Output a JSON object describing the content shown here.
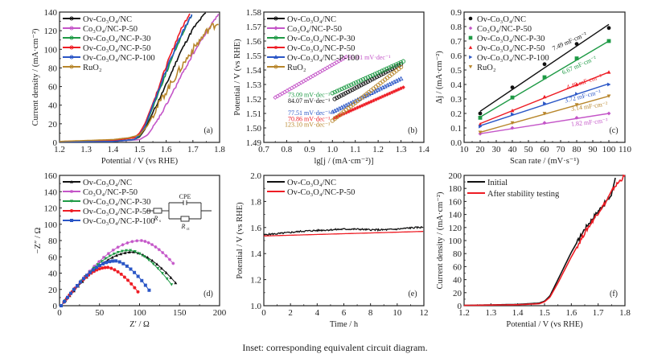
{
  "caption": "Inset: corresponding equivalent circuit diagram.",
  "colors": {
    "black": "#111111",
    "magenta": "#c455c8",
    "green": "#1e9a45",
    "red": "#ee1c24",
    "blue": "#2a56c6",
    "gold": "#b8862b"
  },
  "chart_data": [
    {
      "id": "a",
      "type": "line",
      "panel_label": "(a)",
      "xlabel": "Potential / V (vs RHE)",
      "ylabel": "Current density / (mA·cm⁻²)",
      "xlim": [
        1.2,
        1.8
      ],
      "ylim": [
        0,
        140
      ],
      "xticks": [
        1.2,
        1.3,
        1.4,
        1.5,
        1.6,
        1.7,
        1.8
      ],
      "yticks": [
        0,
        20,
        40,
        60,
        80,
        100,
        120,
        140
      ],
      "xtick_labels": [
        "1.2",
        "1.3",
        "1.4",
        "1.5",
        "1.6",
        "1.7",
        "1.8"
      ],
      "ytick_labels": [
        "0",
        "20",
        "40",
        "60",
        "80",
        "100",
        "120",
        "140"
      ],
      "legend_position": "top-left",
      "series": [
        {
          "name": "Ov-Co₃O₄/NC",
          "color": "#111111",
          "marker": "circle",
          "x": [
            1.2,
            1.4,
            1.48,
            1.5,
            1.52,
            1.55,
            1.6,
            1.65,
            1.7,
            1.75
          ],
          "y": [
            0.5,
            1,
            3,
            6,
            14,
            32,
            62,
            95,
            122,
            140
          ]
        },
        {
          "name": "Co₃O₄/NC-P-50",
          "color": "#c455c8",
          "marker": "diamond",
          "x": [
            1.2,
            1.4,
            1.5,
            1.53,
            1.56,
            1.6,
            1.65,
            1.7,
            1.75,
            1.8
          ],
          "y": [
            0.5,
            1,
            3,
            8,
            20,
            40,
            68,
            95,
            118,
            140
          ]
        },
        {
          "name": "Ov-Co₃O₄/NC-P-30",
          "color": "#1e9a45",
          "marker": "square",
          "x": [
            1.2,
            1.4,
            1.48,
            1.5,
            1.52,
            1.55,
            1.6,
            1.65,
            1.7
          ],
          "y": [
            0.5,
            1,
            3,
            7,
            16,
            38,
            75,
            110,
            140
          ]
        },
        {
          "name": "Ov-Co₃O₄/NC-P-50",
          "color": "#ee1c24",
          "marker": "star",
          "x": [
            1.2,
            1.4,
            1.48,
            1.5,
            1.52,
            1.55,
            1.6,
            1.65,
            1.69
          ],
          "y": [
            1,
            2,
            5,
            10,
            20,
            42,
            82,
            118,
            140
          ]
        },
        {
          "name": "Ov-Co₃O₄/NC-P-100",
          "color": "#2a56c6",
          "marker": "triangle",
          "x": [
            1.2,
            1.4,
            1.48,
            1.5,
            1.52,
            1.55,
            1.6,
            1.65,
            1.7
          ],
          "y": [
            0.5,
            1,
            3,
            8,
            17,
            40,
            78,
            112,
            140
          ]
        },
        {
          "name": "RuO₂",
          "color": "#b8862b",
          "marker": "circle",
          "x": [
            1.2,
            1.4,
            1.46,
            1.5,
            1.53,
            1.56,
            1.6,
            1.65,
            1.7,
            1.76,
            1.8
          ],
          "y": [
            1,
            3,
            5,
            8,
            18,
            35,
            55,
            78,
            100,
            122,
            130
          ]
        }
      ]
    },
    {
      "id": "b",
      "type": "scatter",
      "panel_label": "(b)",
      "xlabel": "lg[j / (mA·cm⁻²)]",
      "ylabel": "Potential / V (vs RHE)",
      "xlim": [
        0.7,
        1.4
      ],
      "ylim": [
        1.49,
        1.58
      ],
      "xticks": [
        0.7,
        0.8,
        0.9,
        1.0,
        1.1,
        1.2,
        1.3,
        1.4
      ],
      "yticks": [
        1.49,
        1.5,
        1.51,
        1.52,
        1.53,
        1.54,
        1.55,
        1.56,
        1.57,
        1.58
      ],
      "xtick_labels": [
        "0.7",
        "0.8",
        "0.9",
        "1.0",
        "1.1",
        "1.2",
        "1.3",
        "1.4"
      ],
      "ytick_labels": [
        "1.49",
        "1.50",
        "1.51",
        "1.52",
        "1.53",
        "1.54",
        "1.55",
        "1.56",
        "1.57",
        "1.58"
      ],
      "legend_position": "top-left",
      "series": [
        {
          "name": "Ov-Co₃O₄/NC",
          "color": "#111111",
          "marker": "circle",
          "x_range": [
            1.01,
            1.3
          ],
          "y_range": [
            1.52,
            1.544
          ],
          "slope_label": "84.07 mV·dec⁻¹"
        },
        {
          "name": "Co₃O₄/NC-P-50",
          "color": "#c455c8",
          "marker": "diamond",
          "x_range": [
            0.75,
            1.06
          ],
          "y_range": [
            1.521,
            1.549
          ],
          "slope_label": "93.01 mV·dec⁻¹"
        },
        {
          "name": "Ov-Co₃O₄/NC-P-30",
          "color": "#1e9a45",
          "marker": "circle",
          "x_range": [
            1.0,
            1.31
          ],
          "y_range": [
            1.524,
            1.546
          ],
          "slope_label": "73.09 mV·dec⁻¹"
        },
        {
          "name": "Ov-Co₃O₄/NC-P-50",
          "color": "#ee1c24",
          "marker": "star",
          "x_range": [
            1.01,
            1.31
          ],
          "y_range": [
            1.507,
            1.528
          ],
          "slope_label": "70.86 mV·dec⁻¹"
        },
        {
          "name": "Ov-Co₃O₄/NC-P-100",
          "color": "#2a56c6",
          "marker": "triangle",
          "x_range": [
            1.0,
            1.3
          ],
          "y_range": [
            1.511,
            1.534
          ],
          "slope_label": "77.51 mV·dec⁻¹"
        },
        {
          "name": "RuO₂",
          "color": "#b8862b",
          "marker": "circle",
          "x_range": [
            1.0,
            1.3
          ],
          "y_range": [
            1.505,
            1.542
          ],
          "slope_label": "123.10 mV·dec⁻¹"
        }
      ]
    },
    {
      "id": "c",
      "type": "scatter",
      "panel_label": "(c)",
      "xlabel": "Scan rate / (mV·s⁻¹)",
      "ylabel": "Δj / (mA·cm⁻²)",
      "xlim": [
        10,
        110
      ],
      "ylim": [
        0,
        0.9
      ],
      "xticks": [
        10,
        20,
        30,
        40,
        50,
        60,
        70,
        80,
        90,
        100,
        110
      ],
      "yticks": [
        0,
        0.1,
        0.2,
        0.3,
        0.4,
        0.5,
        0.6,
        0.7,
        0.8,
        0.9
      ],
      "xtick_labels": [
        "10",
        "20",
        "30",
        "40",
        "50",
        "60",
        "70",
        "80",
        "90",
        "100",
        "110"
      ],
      "ytick_labels": [
        "0.0",
        "0.1",
        "0.2",
        "0.3",
        "0.4",
        "0.5",
        "0.6",
        "0.7",
        "0.8",
        "0.9"
      ],
      "legend_position": "top-left",
      "x": [
        20,
        40,
        60,
        80,
        100
      ],
      "series": [
        {
          "name": "Ov-Co₃O₄/NC",
          "color": "#111111",
          "marker": "circle",
          "values": [
            0.2,
            0.38,
            0.54,
            0.68,
            0.79
          ],
          "fit": [
            0.215,
            0.815
          ],
          "slope_label": "7.49 mF·cm⁻²"
        },
        {
          "name": "Co₃O₄/NC-P-50",
          "color": "#c455c8",
          "marker": "diamond",
          "values": [
            0.06,
            0.1,
            0.135,
            0.17,
            0.2
          ],
          "fit": [
            0.06,
            0.2
          ],
          "slope_label": "1.82 mF·cm⁻²"
        },
        {
          "name": "Ov-Co₃O₄/NC-P-30",
          "color": "#1e9a45",
          "marker": "square",
          "values": [
            0.17,
            0.31,
            0.45,
            0.58,
            0.7
          ],
          "fit": [
            0.175,
            0.7
          ],
          "slope_label": "6.67 mF·cm⁻²"
        },
        {
          "name": "Ov-Co₃O₄/NC-P-50",
          "color": "#ee1c24",
          "marker": "triangle-up",
          "values": [
            0.125,
            0.22,
            0.315,
            0.4,
            0.485
          ],
          "fit": [
            0.13,
            0.485
          ],
          "slope_label": "4.49 mF·cm⁻²"
        },
        {
          "name": "Ov-Co₃O₄/NC-P-100",
          "color": "#2a56c6",
          "marker": "triangle-right",
          "values": [
            0.11,
            0.195,
            0.27,
            0.335,
            0.4
          ],
          "fit": [
            0.115,
            0.405
          ],
          "slope_label": "3.72 mF·cm⁻²"
        },
        {
          "name": "RuO₂",
          "color": "#b8862b",
          "marker": "triangle-down",
          "values": [
            0.07,
            0.135,
            0.2,
            0.26,
            0.32
          ],
          "fit": [
            0.07,
            0.32
          ],
          "slope_label": "3.14 mF·cm⁻²"
        }
      ]
    },
    {
      "id": "d",
      "type": "scatter",
      "panel_label": "(d)",
      "xlabel": "Z′ / Ω",
      "ylabel": "−Z″ / Ω",
      "xlim": [
        0,
        200
      ],
      "ylim": [
        0,
        160
      ],
      "xticks": [
        0,
        50,
        100,
        150,
        200
      ],
      "yticks": [
        0,
        20,
        40,
        60,
        80,
        100,
        120,
        140,
        160
      ],
      "xtick_labels": [
        "0",
        "50",
        "100",
        "150",
        "200"
      ],
      "ytick_labels": [
        "0",
        "20",
        "40",
        "60",
        "80",
        "100",
        "120",
        "140",
        "160"
      ],
      "legend_position": "top-left",
      "inset": {
        "title": "equivalent circuit",
        "elements": [
          "Rs",
          "CPE",
          "Rct"
        ],
        "labels": {
          "cpe": "CPE",
          "rs": "R",
          "rs_sub": "s",
          "rct": "R",
          "rct_sub": "ct"
        }
      },
      "series": [
        {
          "name": "Ov-Co₃O₄/NC",
          "color": "#111111",
          "marker": "triangle-up",
          "arc_end_x": 145,
          "peak": [
            92,
            66
          ],
          "end_y": 28
        },
        {
          "name": "Co₃O₄/NC-P-50",
          "color": "#c455c8",
          "marker": "star",
          "arc_end_x": 142,
          "peak": [
            102,
            80
          ],
          "end_y": 52
        },
        {
          "name": "Ov-Co₃O₄/NC-P-30",
          "color": "#1e9a45",
          "marker": "triangle-down",
          "arc_end_x": 140,
          "peak": [
            88,
            68
          ],
          "end_y": 26
        },
        {
          "name": "Ov-Co₃O₄/NC-P-50",
          "color": "#ee1c24",
          "marker": "circle",
          "arc_end_x": 98,
          "peak": [
            60,
            47
          ],
          "end_y": 17
        },
        {
          "name": "Ov-Co₃O₄/NC-P-100",
          "color": "#2a56c6",
          "marker": "square",
          "arc_end_x": 112,
          "peak": [
            70,
            55
          ],
          "end_y": 19
        }
      ]
    },
    {
      "id": "e",
      "type": "line",
      "panel_label": "(e)",
      "xlabel": "Time / h",
      "ylabel": "Potential / V (vs RHE)",
      "xlim": [
        0,
        12
      ],
      "ylim": [
        1.0,
        2.0
      ],
      "xticks": [
        0,
        2,
        4,
        6,
        8,
        10,
        12
      ],
      "yticks": [
        1.0,
        1.2,
        1.4,
        1.6,
        1.8,
        2.0
      ],
      "xtick_labels": [
        "0",
        "2",
        "4",
        "6",
        "8",
        "10",
        "12"
      ],
      "ytick_labels": [
        "1.0",
        "1.2",
        "1.4",
        "1.6",
        "1.8",
        "2.0"
      ],
      "legend_position": "top-left",
      "series": [
        {
          "name": "Ov-Co₃O₄/NC",
          "color": "#111111",
          "x": [
            0,
            0.3,
            1,
            2,
            3,
            4,
            5,
            6,
            7,
            8,
            9,
            10,
            11,
            12
          ],
          "y": [
            1.54,
            1.545,
            1.55,
            1.56,
            1.57,
            1.575,
            1.58,
            1.585,
            1.585,
            1.58,
            1.58,
            1.585,
            1.595,
            1.6
          ]
        },
        {
          "name": "Ov-Co₃O₄/NC-P-50",
          "color": "#ee1c24",
          "x": [
            0,
            12
          ],
          "y": [
            1.535,
            1.57
          ]
        }
      ]
    },
    {
      "id": "f",
      "type": "line",
      "panel_label": "(f)",
      "xlabel": "Potential / V (vs RHE)",
      "ylabel": "Current density / (mA·cm⁻²)",
      "xlim": [
        1.2,
        1.8
      ],
      "ylim": [
        0,
        200
      ],
      "xticks": [
        1.2,
        1.3,
        1.4,
        1.5,
        1.6,
        1.7,
        1.8
      ],
      "yticks": [
        0,
        20,
        40,
        60,
        80,
        100,
        120,
        140,
        160,
        180,
        200
      ],
      "xtick_labels": [
        "1.2",
        "1.3",
        "1.4",
        "1.5",
        "1.6",
        "1.7",
        "1.8"
      ],
      "ytick_labels": [
        "0",
        "20",
        "40",
        "60",
        "80",
        "100",
        "120",
        "140",
        "160",
        "180",
        "200"
      ],
      "legend_position": "top-left",
      "series": [
        {
          "name": "Initial",
          "color": "#111111",
          "x": [
            1.2,
            1.4,
            1.48,
            1.5,
            1.52,
            1.55,
            1.6,
            1.65,
            1.7,
            1.72,
            1.75,
            1.765
          ],
          "y": [
            0.5,
            2,
            4,
            7,
            15,
            40,
            82,
            118,
            145,
            155,
            170,
            200
          ]
        },
        {
          "name": "After stability testing",
          "color": "#ee1c24",
          "x": [
            1.2,
            1.4,
            1.48,
            1.5,
            1.52,
            1.55,
            1.6,
            1.65,
            1.7,
            1.73,
            1.76,
            1.8
          ],
          "y": [
            0.5,
            1.5,
            3,
            6,
            13,
            35,
            75,
            112,
            143,
            160,
            182,
            200
          ]
        }
      ]
    }
  ]
}
